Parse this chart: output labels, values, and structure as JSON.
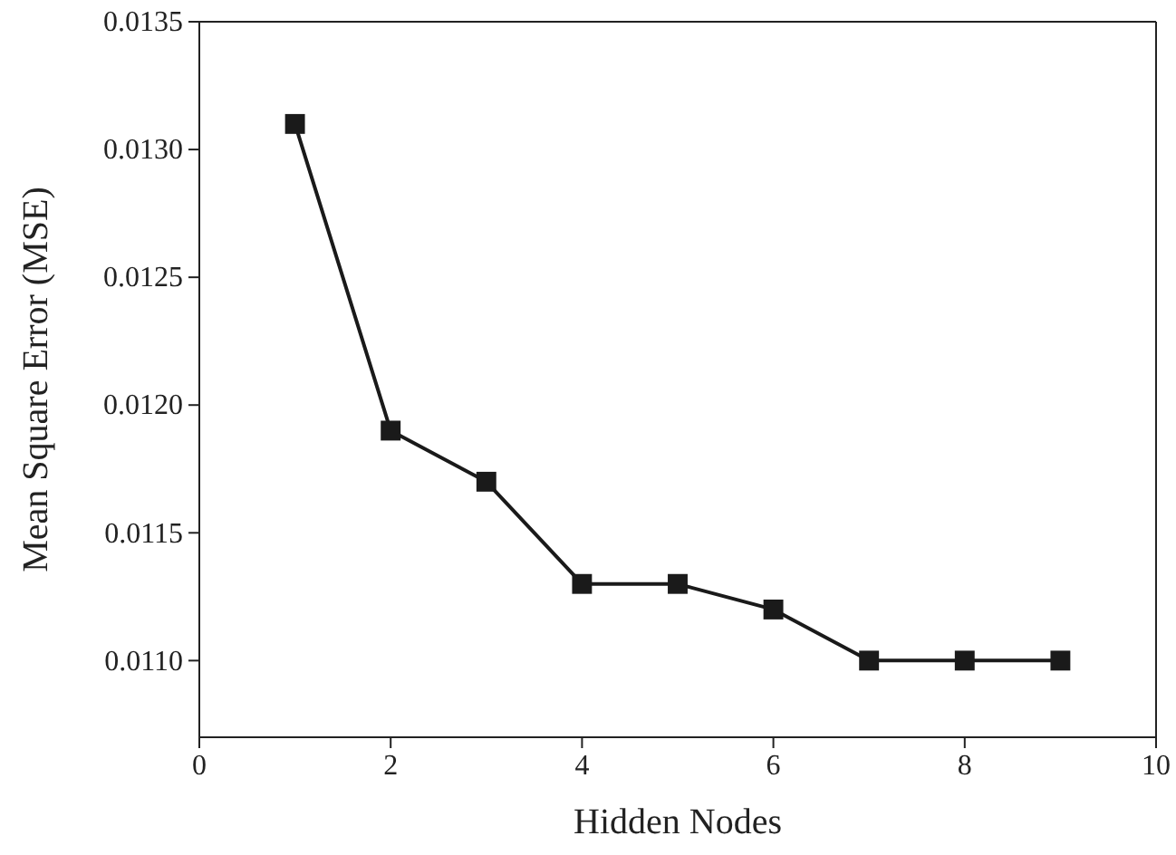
{
  "chart_data": {
    "type": "line",
    "xlabel": "Hidden Nodes",
    "ylabel": "Mean Square Error (MSE)",
    "x": [
      1,
      2,
      3,
      4,
      5,
      6,
      7,
      8,
      9
    ],
    "series": [
      {
        "color": "#1a1a1a",
        "values": [
          0.0131,
          0.0119,
          0.0117,
          0.0113,
          0.0113,
          0.0112,
          0.011,
          0.011,
          0.011
        ]
      }
    ],
    "xlim": [
      0,
      10
    ],
    "xticks": [
      0,
      2,
      4,
      6,
      8,
      10
    ],
    "ylim": [
      0.0107,
      0.0135
    ],
    "yticks": [
      {
        "value": 0.011,
        "label": "0.0110"
      },
      {
        "value": 0.0115,
        "label": "0.0115"
      },
      {
        "value": 0.012,
        "label": "0.0120"
      },
      {
        "value": 0.0125,
        "label": "0.0125"
      },
      {
        "value": 0.013,
        "label": "0.0130"
      },
      {
        "value": 0.0135,
        "label": "0.0135"
      }
    ],
    "marker": "square",
    "line_style": "solid",
    "grid": false
  }
}
